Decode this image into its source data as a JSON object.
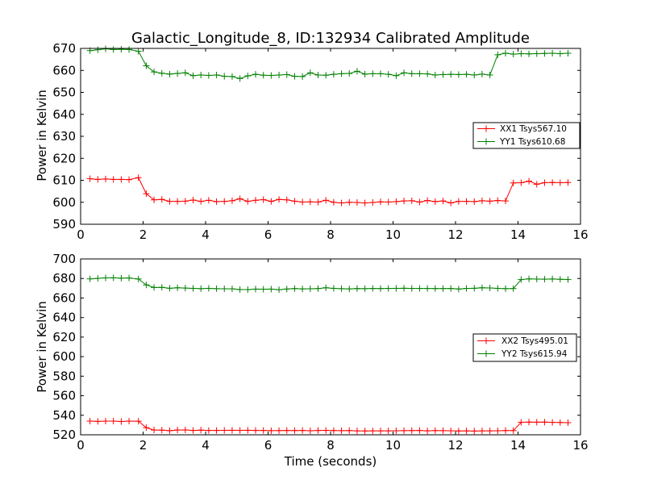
{
  "chart_data": [
    {
      "type": "line",
      "title": "Galactic_Longitude_8, ID:132934 Calibrated Amplitude",
      "xlabel": "",
      "ylabel": "Power in Kelvin",
      "xlim": [
        0,
        16
      ],
      "ylim": [
        590,
        670
      ],
      "xticks": [
        0,
        2,
        4,
        6,
        8,
        10,
        12,
        14,
        16
      ],
      "yticks": [
        590,
        600,
        610,
        620,
        630,
        640,
        650,
        660,
        670
      ],
      "legend_position": "center-right",
      "marker": "plus",
      "series": [
        {
          "name": "XX1 Tsys567.10",
          "color": "#ff0000",
          "x": [
            0.3,
            0.55,
            0.8,
            1.05,
            1.3,
            1.55,
            1.85,
            2.1,
            2.35,
            2.6,
            2.85,
            3.1,
            3.35,
            3.6,
            3.85,
            4.1,
            4.35,
            4.6,
            4.85,
            5.1,
            5.35,
            5.6,
            5.85,
            6.1,
            6.35,
            6.6,
            6.85,
            7.1,
            7.35,
            7.6,
            7.85,
            8.1,
            8.35,
            8.6,
            8.85,
            9.1,
            9.35,
            9.6,
            9.85,
            10.1,
            10.35,
            10.6,
            10.85,
            11.1,
            11.35,
            11.6,
            11.85,
            12.1,
            12.35,
            12.6,
            12.85,
            13.1,
            13.35,
            13.6,
            13.85,
            14.1,
            14.35,
            14.6,
            14.85,
            15.1,
            15.35,
            15.6
          ],
          "y": [
            610.7,
            610.4,
            610.6,
            610.4,
            610.4,
            610.3,
            611.2,
            603.9,
            601.1,
            601.3,
            600.4,
            600.4,
            600.5,
            601.0,
            600.4,
            600.9,
            600.3,
            600.4,
            600.7,
            601.6,
            600.4,
            600.9,
            601.2,
            600.4,
            601.3,
            601.1,
            600.5,
            600.1,
            600.2,
            600.1,
            600.9,
            600.0,
            599.7,
            600.0,
            599.9,
            599.7,
            599.9,
            600.2,
            600.1,
            600.3,
            600.6,
            600.7,
            600.1,
            600.8,
            600.3,
            600.6,
            599.7,
            600.4,
            600.4,
            600.3,
            600.7,
            600.5,
            600.8,
            600.6,
            608.8,
            608.9,
            609.6,
            608.2,
            608.9,
            609.0,
            608.9,
            609.0
          ]
        },
        {
          "name": "YY1 Tsys610.68",
          "color": "#008000",
          "x": [
            0.3,
            0.55,
            0.8,
            1.05,
            1.3,
            1.55,
            1.85,
            2.1,
            2.35,
            2.6,
            2.85,
            3.1,
            3.35,
            3.6,
            3.85,
            4.1,
            4.35,
            4.6,
            4.85,
            5.1,
            5.35,
            5.6,
            5.85,
            6.1,
            6.35,
            6.6,
            6.85,
            7.1,
            7.35,
            7.6,
            7.85,
            8.1,
            8.35,
            8.6,
            8.85,
            9.1,
            9.35,
            9.6,
            9.85,
            10.1,
            10.35,
            10.6,
            10.85,
            11.1,
            11.35,
            11.6,
            11.85,
            12.1,
            12.35,
            12.6,
            12.85,
            13.1,
            13.35,
            13.6,
            13.85,
            14.1,
            14.35,
            14.6,
            14.85,
            15.1,
            15.35,
            15.6
          ],
          "y": [
            669.0,
            669.4,
            669.8,
            669.5,
            669.6,
            669.5,
            668.7,
            662.1,
            659.3,
            658.7,
            658.3,
            658.6,
            658.9,
            657.6,
            657.9,
            657.7,
            657.9,
            657.3,
            657.2,
            656.3,
            657.5,
            658.2,
            657.8,
            657.7,
            657.9,
            658.1,
            657.3,
            657.2,
            658.9,
            657.9,
            657.8,
            658.2,
            658.5,
            658.6,
            659.6,
            658.3,
            658.5,
            658.5,
            658.2,
            657.6,
            658.9,
            658.5,
            658.5,
            658.4,
            657.9,
            658.1,
            658.2,
            658.1,
            658.2,
            657.9,
            658.3,
            657.9,
            667.1,
            667.8,
            667.4,
            667.6,
            667.5,
            667.6,
            667.7,
            667.8,
            667.6,
            667.8
          ]
        }
      ]
    },
    {
      "type": "line",
      "title": "",
      "xlabel": "Time (seconds)",
      "ylabel": "Power in Kelvin",
      "xlim": [
        0,
        16
      ],
      "ylim": [
        520,
        700
      ],
      "xticks": [
        0,
        2,
        4,
        6,
        8,
        10,
        12,
        14,
        16
      ],
      "yticks": [
        520,
        540,
        560,
        580,
        600,
        620,
        640,
        660,
        680,
        700
      ],
      "legend_position": "center-right",
      "marker": "plus",
      "series": [
        {
          "name": "XX2 Tsys495.01",
          "color": "#ff0000",
          "x": [
            0.3,
            0.55,
            0.8,
            1.05,
            1.3,
            1.55,
            1.85,
            2.1,
            2.35,
            2.6,
            2.85,
            3.1,
            3.35,
            3.6,
            3.85,
            4.1,
            4.35,
            4.6,
            4.85,
            5.1,
            5.35,
            5.6,
            5.85,
            6.1,
            6.35,
            6.6,
            6.85,
            7.1,
            7.35,
            7.6,
            7.85,
            8.1,
            8.35,
            8.6,
            8.85,
            9.1,
            9.35,
            9.6,
            9.85,
            10.1,
            10.35,
            10.6,
            10.85,
            11.1,
            11.35,
            11.6,
            11.85,
            12.1,
            12.35,
            12.6,
            12.85,
            13.1,
            13.35,
            13.6,
            13.85,
            14.1,
            14.35,
            14.6,
            14.85,
            15.1,
            15.35,
            15.6
          ],
          "y": [
            534.0,
            533.7,
            534.0,
            534.0,
            533.6,
            534.0,
            533.9,
            527.3,
            524.9,
            524.8,
            524.2,
            524.9,
            525.0,
            524.4,
            524.8,
            524.4,
            524.4,
            524.5,
            524.6,
            524.5,
            524.6,
            524.4,
            524.4,
            524.2,
            524.3,
            524.4,
            524.3,
            524.4,
            524.1,
            524.4,
            524.5,
            524.3,
            524.2,
            524.3,
            524.0,
            523.9,
            524.0,
            524.0,
            524.0,
            524.1,
            524.2,
            524.3,
            524.4,
            524.0,
            524.3,
            524.2,
            524.1,
            523.9,
            524.0,
            523.8,
            524.0,
            524.0,
            524.1,
            524.3,
            524.3,
            532.8,
            533.0,
            532.9,
            533.0,
            532.7,
            532.6,
            532.4
          ]
        },
        {
          "name": "YY2 Tsys615.94",
          "color": "#008000",
          "x": [
            0.3,
            0.55,
            0.8,
            1.05,
            1.3,
            1.55,
            1.85,
            2.1,
            2.35,
            2.6,
            2.85,
            3.1,
            3.35,
            3.6,
            3.85,
            4.1,
            4.35,
            4.6,
            4.85,
            5.1,
            5.35,
            5.6,
            5.85,
            6.1,
            6.35,
            6.6,
            6.85,
            7.1,
            7.35,
            7.6,
            7.85,
            8.1,
            8.35,
            8.6,
            8.85,
            9.1,
            9.35,
            9.6,
            9.85,
            10.1,
            10.35,
            10.6,
            10.85,
            11.1,
            11.35,
            11.6,
            11.85,
            12.1,
            12.35,
            12.6,
            12.85,
            13.1,
            13.35,
            13.6,
            13.85,
            14.1,
            14.35,
            14.6,
            14.85,
            15.1,
            15.35,
            15.6
          ],
          "y": [
            679.6,
            680.1,
            680.6,
            680.7,
            680.3,
            680.5,
            679.5,
            673.4,
            670.8,
            670.9,
            670.0,
            670.5,
            670.2,
            669.9,
            669.6,
            669.9,
            669.6,
            669.5,
            669.4,
            668.7,
            668.6,
            669.1,
            669.0,
            669.1,
            668.5,
            669.2,
            669.7,
            669.3,
            669.5,
            669.7,
            670.5,
            669.9,
            669.6,
            669.3,
            669.7,
            669.6,
            669.8,
            669.7,
            669.8,
            669.9,
            670.0,
            669.8,
            669.8,
            669.8,
            669.7,
            669.7,
            669.8,
            669.2,
            669.8,
            670.0,
            670.5,
            670.3,
            669.9,
            669.6,
            669.7,
            678.9,
            679.6,
            679.4,
            679.3,
            679.5,
            679.2,
            678.9
          ]
        }
      ]
    }
  ]
}
